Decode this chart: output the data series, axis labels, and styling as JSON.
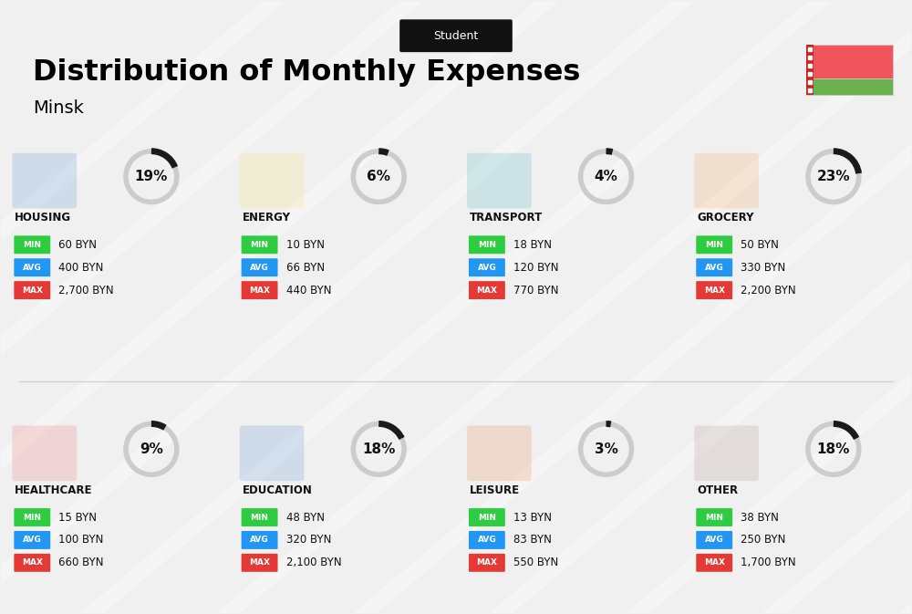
{
  "title": "Distribution of Monthly Expenses",
  "subtitle": "Student",
  "city": "Minsk",
  "bg_color": "#f0f0f0",
  "categories": [
    {
      "name": "HOUSING",
      "pct": 19,
      "min_val": "60 BYN",
      "avg_val": "400 BYN",
      "max_val": "2,700 BYN",
      "row": 0,
      "col": 0
    },
    {
      "name": "ENERGY",
      "pct": 6,
      "min_val": "10 BYN",
      "avg_val": "66 BYN",
      "max_val": "440 BYN",
      "row": 0,
      "col": 1
    },
    {
      "name": "TRANSPORT",
      "pct": 4,
      "min_val": "18 BYN",
      "avg_val": "120 BYN",
      "max_val": "770 BYN",
      "row": 0,
      "col": 2
    },
    {
      "name": "GROCERY",
      "pct": 23,
      "min_val": "50 BYN",
      "avg_val": "330 BYN",
      "max_val": "2,200 BYN",
      "row": 0,
      "col": 3
    },
    {
      "name": "HEALTHCARE",
      "pct": 9,
      "min_val": "15 BYN",
      "avg_val": "100 BYN",
      "max_val": "660 BYN",
      "row": 1,
      "col": 0
    },
    {
      "name": "EDUCATION",
      "pct": 18,
      "min_val": "48 BYN",
      "avg_val": "320 BYN",
      "max_val": "2,100 BYN",
      "row": 1,
      "col": 1
    },
    {
      "name": "LEISURE",
      "pct": 3,
      "min_val": "13 BYN",
      "avg_val": "83 BYN",
      "max_val": "550 BYN",
      "row": 1,
      "col": 2
    },
    {
      "name": "OTHER",
      "pct": 18,
      "min_val": "38 BYN",
      "avg_val": "250 BYN",
      "max_val": "1,700 BYN",
      "row": 1,
      "col": 3
    }
  ],
  "min_color": "#2ecc40",
  "avg_color": "#2196f3",
  "max_color": "#e53935",
  "label_color": "#ffffff",
  "dark_color": "#111111",
  "ring_bg_color": "#cccccc",
  "ring_fg_color": "#1a1a1a",
  "flag_red": "#f0545c",
  "flag_green": "#6ab04c"
}
